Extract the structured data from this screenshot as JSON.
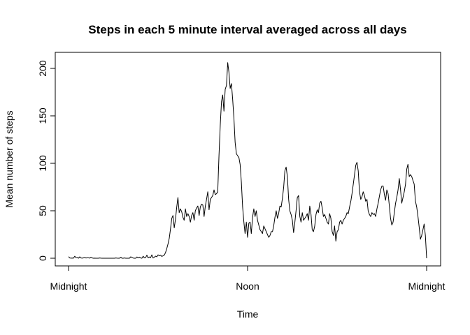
{
  "chart_data": {
    "type": "line",
    "title": "Steps in each 5 minute interval averaged across all days",
    "xlabel": "Time",
    "ylabel": "Mean number of steps",
    "x_ticks": [
      {
        "label": "Midnight",
        "value": 0
      },
      {
        "label": "Noon",
        "value": 720
      },
      {
        "label": "Midnight",
        "value": 1440
      }
    ],
    "x_unit": "minutes since midnight",
    "xlim": [
      0,
      1440
    ],
    "y_ticks": [
      0,
      50,
      100,
      150,
      200
    ],
    "ylim": [
      0,
      206
    ],
    "grid": false,
    "legend": "none",
    "series": [
      {
        "color": "#000000",
        "points": [
          [
            0,
            1.7
          ],
          [
            5,
            0.3
          ],
          [
            10,
            0.1
          ],
          [
            15,
            0.2
          ],
          [
            20,
            0.1
          ],
          [
            25,
            2.1
          ],
          [
            30,
            0.5
          ],
          [
            35,
            0.9
          ],
          [
            40,
            0
          ],
          [
            45,
            1.5
          ],
          [
            50,
            0.3
          ],
          [
            55,
            0.1
          ],
          [
            60,
            0.4
          ],
          [
            65,
            0.9
          ],
          [
            70,
            0.2
          ],
          [
            75,
            0.5
          ],
          [
            80,
            0.5
          ],
          [
            85,
            0.1
          ],
          [
            90,
            1.1
          ],
          [
            95,
            0.3
          ],
          [
            100,
            0
          ],
          [
            105,
            0.1
          ],
          [
            110,
            0
          ],
          [
            115,
            0
          ],
          [
            120,
            0
          ],
          [
            125,
            0.3
          ],
          [
            130,
            0.1
          ],
          [
            135,
            0
          ],
          [
            140,
            0
          ],
          [
            145,
            0
          ],
          [
            150,
            0
          ],
          [
            155,
            0
          ],
          [
            160,
            0
          ],
          [
            165,
            0
          ],
          [
            170,
            0
          ],
          [
            175,
            0
          ],
          [
            180,
            0
          ],
          [
            185,
            0
          ],
          [
            190,
            0.3
          ],
          [
            195,
            0.1
          ],
          [
            200,
            0
          ],
          [
            205,
            0
          ],
          [
            210,
            1.1
          ],
          [
            215,
            0
          ],
          [
            220,
            0
          ],
          [
            225,
            0.3
          ],
          [
            230,
            0
          ],
          [
            235,
            0
          ],
          [
            240,
            0
          ],
          [
            245,
            0
          ],
          [
            250,
            1.5
          ],
          [
            255,
            0.9
          ],
          [
            260,
            0.2
          ],
          [
            265,
            0
          ],
          [
            270,
            0
          ],
          [
            275,
            1.3
          ],
          [
            280,
            0.4
          ],
          [
            285,
            1.2
          ],
          [
            290,
            0.3
          ],
          [
            295,
            0
          ],
          [
            300,
            2.1
          ],
          [
            305,
            0.4
          ],
          [
            310,
            0.6
          ],
          [
            315,
            3.2
          ],
          [
            320,
            0.4
          ],
          [
            325,
            1.3
          ],
          [
            330,
            0.6
          ],
          [
            335,
            3.5
          ],
          [
            340,
            0.2
          ],
          [
            345,
            1.1
          ],
          [
            350,
            2.2
          ],
          [
            355,
            1.5
          ],
          [
            360,
            3.6
          ],
          [
            365,
            2.5
          ],
          [
            370,
            3.3
          ],
          [
            375,
            1.9
          ],
          [
            380,
            2.5
          ],
          [
            385,
            3.3
          ],
          [
            390,
            6
          ],
          [
            395,
            10
          ],
          [
            400,
            15
          ],
          [
            405,
            21
          ],
          [
            410,
            31
          ],
          [
            415,
            42
          ],
          [
            420,
            45
          ],
          [
            425,
            32
          ],
          [
            430,
            41
          ],
          [
            435,
            54
          ],
          [
            440,
            64
          ],
          [
            445,
            48
          ],
          [
            450,
            52
          ],
          [
            455,
            49
          ],
          [
            460,
            43
          ],
          [
            465,
            40
          ],
          [
            470,
            52
          ],
          [
            475,
            44
          ],
          [
            480,
            47
          ],
          [
            485,
            44
          ],
          [
            490,
            38
          ],
          [
            495,
            45
          ],
          [
            500,
            48
          ],
          [
            505,
            40
          ],
          [
            510,
            50
          ],
          [
            515,
            53
          ],
          [
            520,
            55
          ],
          [
            525,
            45
          ],
          [
            530,
            54
          ],
          [
            535,
            57
          ],
          [
            540,
            56
          ],
          [
            545,
            44
          ],
          [
            550,
            55
          ],
          [
            555,
            62
          ],
          [
            560,
            70
          ],
          [
            565,
            51
          ],
          [
            570,
            62
          ],
          [
            575,
            64
          ],
          [
            580,
            66
          ],
          [
            585,
            72
          ],
          [
            590,
            67
          ],
          [
            595,
            68
          ],
          [
            600,
            70
          ],
          [
            605,
            108
          ],
          [
            610,
            140
          ],
          [
            615,
            165
          ],
          [
            620,
            172
          ],
          [
            625,
            155
          ],
          [
            630,
            178
          ],
          [
            635,
            182
          ],
          [
            640,
            206
          ],
          [
            645,
            196
          ],
          [
            650,
            179
          ],
          [
            655,
            184
          ],
          [
            660,
            167
          ],
          [
            665,
            148
          ],
          [
            670,
            122
          ],
          [
            675,
            110
          ],
          [
            680,
            108
          ],
          [
            685,
            106
          ],
          [
            690,
            99
          ],
          [
            695,
            80
          ],
          [
            700,
            54
          ],
          [
            705,
            38
          ],
          [
            710,
            26
          ],
          [
            715,
            38
          ],
          [
            720,
            22
          ],
          [
            725,
            37
          ],
          [
            730,
            38
          ],
          [
            735,
            26
          ],
          [
            740,
            43
          ],
          [
            745,
            52
          ],
          [
            750,
            44
          ],
          [
            755,
            50
          ],
          [
            760,
            40
          ],
          [
            765,
            35
          ],
          [
            770,
            30
          ],
          [
            775,
            28
          ],
          [
            780,
            26
          ],
          [
            785,
            34
          ],
          [
            790,
            31
          ],
          [
            795,
            28
          ],
          [
            800,
            25
          ],
          [
            805,
            22
          ],
          [
            810,
            24
          ],
          [
            815,
            28
          ],
          [
            820,
            28
          ],
          [
            825,
            34
          ],
          [
            830,
            43
          ],
          [
            835,
            50
          ],
          [
            840,
            42
          ],
          [
            845,
            47
          ],
          [
            850,
            55
          ],
          [
            855,
            54
          ],
          [
            860,
            63
          ],
          [
            865,
            75
          ],
          [
            870,
            92
          ],
          [
            875,
            96
          ],
          [
            880,
            86
          ],
          [
            885,
            62
          ],
          [
            890,
            50
          ],
          [
            895,
            46
          ],
          [
            900,
            40
          ],
          [
            905,
            27
          ],
          [
            910,
            38
          ],
          [
            915,
            50
          ],
          [
            920,
            64
          ],
          [
            925,
            66
          ],
          [
            930,
            44
          ],
          [
            935,
            38
          ],
          [
            940,
            48
          ],
          [
            945,
            40
          ],
          [
            950,
            42
          ],
          [
            955,
            44
          ],
          [
            960,
            47
          ],
          [
            965,
            40
          ],
          [
            970,
            55
          ],
          [
            975,
            46
          ],
          [
            980,
            30
          ],
          [
            985,
            28
          ],
          [
            990,
            34
          ],
          [
            995,
            46
          ],
          [
            1000,
            51
          ],
          [
            1005,
            48
          ],
          [
            1010,
            58
          ],
          [
            1015,
            60
          ],
          [
            1020,
            53
          ],
          [
            1025,
            44
          ],
          [
            1030,
            46
          ],
          [
            1035,
            42
          ],
          [
            1040,
            38
          ],
          [
            1045,
            36
          ],
          [
            1050,
            47
          ],
          [
            1055,
            42
          ],
          [
            1060,
            28
          ],
          [
            1065,
            24
          ],
          [
            1070,
            34
          ],
          [
            1075,
            18
          ],
          [
            1080,
            28
          ],
          [
            1085,
            30
          ],
          [
            1090,
            38
          ],
          [
            1095,
            40
          ],
          [
            1100,
            36
          ],
          [
            1105,
            40
          ],
          [
            1110,
            42
          ],
          [
            1115,
            44
          ],
          [
            1120,
            48
          ],
          [
            1125,
            47
          ],
          [
            1130,
            54
          ],
          [
            1135,
            60
          ],
          [
            1140,
            68
          ],
          [
            1145,
            78
          ],
          [
            1150,
            88
          ],
          [
            1155,
            98
          ],
          [
            1160,
            101
          ],
          [
            1165,
            92
          ],
          [
            1170,
            70
          ],
          [
            1175,
            62
          ],
          [
            1180,
            65
          ],
          [
            1185,
            70
          ],
          [
            1190,
            66
          ],
          [
            1195,
            60
          ],
          [
            1200,
            62
          ],
          [
            1205,
            50
          ],
          [
            1210,
            46
          ],
          [
            1215,
            44
          ],
          [
            1220,
            48
          ],
          [
            1225,
            46
          ],
          [
            1230,
            47
          ],
          [
            1235,
            44
          ],
          [
            1240,
            52
          ],
          [
            1245,
            58
          ],
          [
            1250,
            65
          ],
          [
            1255,
            72
          ],
          [
            1260,
            76
          ],
          [
            1265,
            76
          ],
          [
            1270,
            67
          ],
          [
            1275,
            61
          ],
          [
            1280,
            72
          ],
          [
            1285,
            68
          ],
          [
            1290,
            55
          ],
          [
            1295,
            42
          ],
          [
            1300,
            35
          ],
          [
            1305,
            38
          ],
          [
            1310,
            48
          ],
          [
            1315,
            58
          ],
          [
            1320,
            64
          ],
          [
            1325,
            72
          ],
          [
            1330,
            84
          ],
          [
            1335,
            72
          ],
          [
            1340,
            58
          ],
          [
            1345,
            64
          ],
          [
            1350,
            70
          ],
          [
            1355,
            78
          ],
          [
            1360,
            94
          ],
          [
            1365,
            99
          ],
          [
            1370,
            86
          ],
          [
            1375,
            88
          ],
          [
            1380,
            86
          ],
          [
            1385,
            82
          ],
          [
            1390,
            78
          ],
          [
            1395,
            60
          ],
          [
            1400,
            54
          ],
          [
            1405,
            44
          ],
          [
            1410,
            33
          ],
          [
            1415,
            20
          ],
          [
            1420,
            24
          ],
          [
            1425,
            30
          ],
          [
            1430,
            36
          ],
          [
            1435,
            24
          ],
          [
            1440,
            0
          ]
        ]
      }
    ]
  }
}
